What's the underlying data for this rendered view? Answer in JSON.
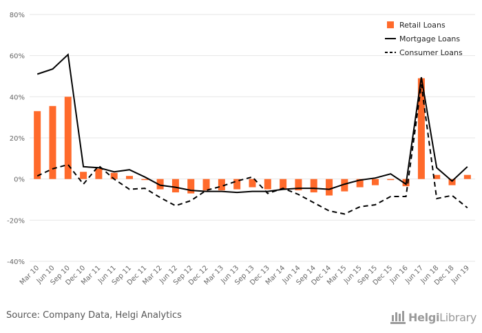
{
  "chart_data": {
    "type": "bar",
    "categories": [
      "Mar 10",
      "Jun 10",
      "Sep 10",
      "Dec 10",
      "Mar 11",
      "Jun 11",
      "Sep 11",
      "Dec 11",
      "Mar 12",
      "Jun 12",
      "Sep 12",
      "Dec 12",
      "Mar 13",
      "Jun 13",
      "Sep 13",
      "Dec 13",
      "Mar 14",
      "Jun 14",
      "Sep 14",
      "Dec 14",
      "Mar 15",
      "Jun 15",
      "Sep 15",
      "Dec 15",
      "Jun 16",
      "Jun 17",
      "Jun 18",
      "Dec 18",
      "Jun 19"
    ],
    "series": [
      {
        "name": "Retail Loans",
        "type": "bar",
        "color": "#ff6a2b",
        "values": [
          33,
          35.5,
          40,
          3.5,
          5,
          3,
          1.5,
          -0.5,
          -5,
          -6.5,
          -7,
          -5.5,
          -5.5,
          -5,
          -4,
          -5,
          -5,
          -5.5,
          -6.5,
          -8,
          -6,
          -4,
          -3,
          -0.5,
          -3.5,
          49,
          2,
          -3,
          2
        ]
      },
      {
        "name": "Mortgage Loans",
        "type": "line",
        "style": "solid",
        "color": "#000000",
        "values": [
          51,
          53.5,
          60.5,
          6,
          5.5,
          3.5,
          4.5,
          1,
          -3,
          -4,
          -5.5,
          -6,
          -6,
          -6.5,
          -6,
          -6,
          -5,
          -4.5,
          -4.5,
          -5,
          -2.5,
          -0.5,
          0.5,
          2.5,
          -2.5,
          49.5,
          5.5,
          -1,
          6
        ]
      },
      {
        "name": "Consumer Loans",
        "type": "line",
        "style": "dashed",
        "color": "#000000",
        "values": [
          1.5,
          5,
          7,
          -2.5,
          6.5,
          0,
          -5,
          -4.5,
          -9,
          -13,
          -10.5,
          -5.5,
          -3.5,
          -1,
          1,
          -7,
          -4.5,
          -7.5,
          -11.5,
          -15.5,
          -17,
          -13.5,
          -12.5,
          -8.5,
          -8.5,
          46,
          -9.5,
          -8,
          -14
        ]
      }
    ],
    "y_ticks": [
      "80%",
      "60%",
      "40%",
      "20%",
      "0%",
      "-20%",
      "-40%"
    ],
    "ylim": [
      -40,
      80
    ],
    "grid": true,
    "legend_position": "top-right"
  },
  "source": "Source: Company Data, Helgi Analytics",
  "brand": {
    "name_bold": "Helgi",
    "name_regular": "Library",
    "icon": "bar-chart-hand-icon",
    "color": "#9a9a9a"
  }
}
